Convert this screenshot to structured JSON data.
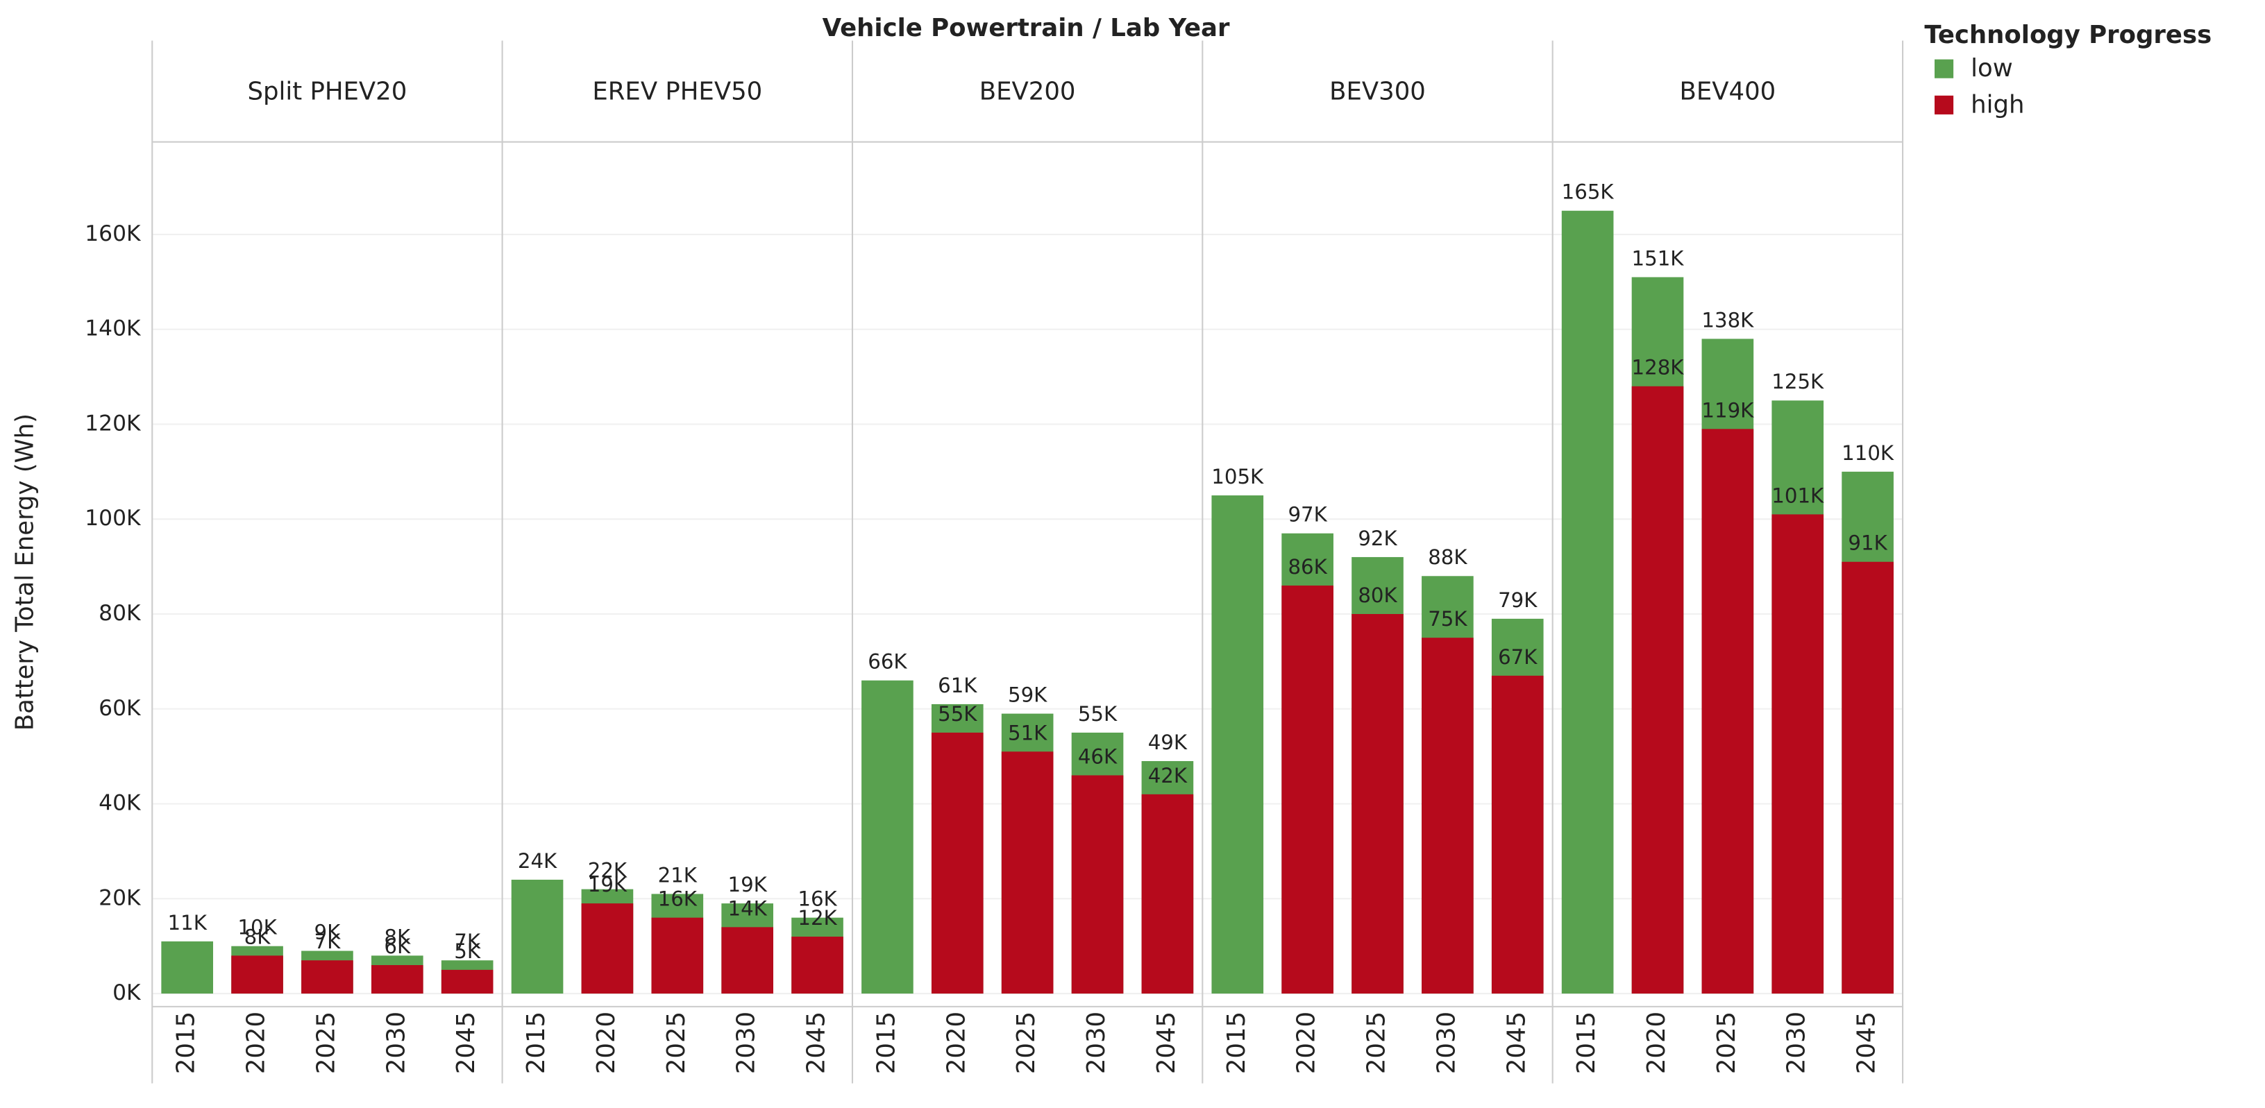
{
  "chart_data": {
    "type": "bar",
    "title": "Vehicle Powertrain / Lab Year",
    "y_label": "Battery Total Energy (Wh)",
    "legend_title": "Technology Progress",
    "panels": [
      "Split PHEV20",
      "EREV PHEV50",
      "BEV200",
      "BEV300",
      "BEV400"
    ],
    "categories": [
      "2015",
      "2020",
      "2025",
      "2030",
      "2045"
    ],
    "ylim": [
      -2750,
      179500
    ],
    "yticks": [
      {
        "value": 0,
        "label": "0K"
      },
      {
        "value": 20000,
        "label": "20K"
      },
      {
        "value": 40000,
        "label": "40K"
      },
      {
        "value": 60000,
        "label": "60K"
      },
      {
        "value": 80000,
        "label": "80K"
      },
      {
        "value": 100000,
        "label": "100K"
      },
      {
        "value": 120000,
        "label": "120K"
      },
      {
        "value": 140000,
        "label": "140K"
      },
      {
        "value": 160000,
        "label": "160K"
      }
    ],
    "grid": true,
    "series": [
      {
        "name": "low",
        "color": "#59a14f",
        "values": [
          [
            11000,
            10000,
            9000,
            8000,
            7000
          ],
          [
            24000,
            22000,
            21000,
            19000,
            16000
          ],
          [
            66000,
            61000,
            59000,
            55000,
            49000
          ],
          [
            105000,
            97000,
            92000,
            88000,
            79000
          ],
          [
            165000,
            151000,
            138000,
            125000,
            110000
          ]
        ],
        "value_labels": [
          [
            "11K",
            "10K",
            "9K",
            "8K",
            "7K"
          ],
          [
            "24K",
            "22K",
            "21K",
            "19K",
            "16K"
          ],
          [
            "66K",
            "61K",
            "59K",
            "55K",
            "49K"
          ],
          [
            "105K",
            "97K",
            "92K",
            "88K",
            "79K"
          ],
          [
            "165K",
            "151K",
            "138K",
            "125K",
            "110K"
          ]
        ]
      },
      {
        "name": "high",
        "color": "#b60a1c",
        "values": [
          [
            null,
            8000,
            7000,
            6000,
            5000
          ],
          [
            null,
            19000,
            16000,
            14000,
            12000
          ],
          [
            null,
            55000,
            51000,
            46000,
            42000
          ],
          [
            null,
            86000,
            80000,
            75000,
            67000
          ],
          [
            null,
            128000,
            119000,
            101000,
            91000
          ]
        ],
        "value_labels": [
          [
            null,
            "8K",
            "7K",
            "6K",
            "5K"
          ],
          [
            null,
            "19K",
            "16K",
            "14K",
            "12K"
          ],
          [
            null,
            "55K",
            "51K",
            "46K",
            "42K"
          ],
          [
            null,
            "86K",
            "80K",
            "75K",
            "67K"
          ],
          [
            null,
            "128K",
            "119K",
            "101K",
            "91K"
          ]
        ]
      }
    ]
  }
}
